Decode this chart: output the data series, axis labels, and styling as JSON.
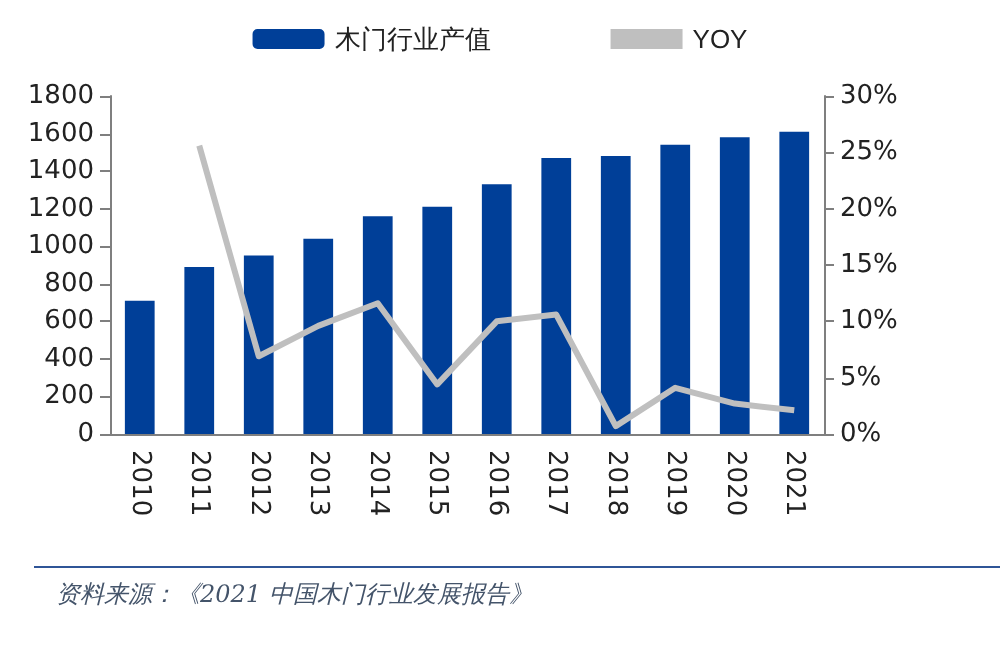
{
  "chart_data": {
    "type": "bar",
    "categories": [
      "2010",
      "2011",
      "2012",
      "2013",
      "2014",
      "2015",
      "2016",
      "2017",
      "2018",
      "2019",
      "2020",
      "2021"
    ],
    "series": [
      {
        "name": "木门行业产值",
        "color": "#003f98",
        "values": [
          710,
          890,
          950,
          1040,
          1160,
          1210,
          1330,
          1470,
          1480,
          1540,
          1580,
          1610
        ]
      },
      {
        "name": "YOY",
        "type": "line",
        "axis": "y2",
        "color": "#bfbfbf",
        "values": [
          null,
          25.6,
          6.9,
          9.6,
          11.6,
          4.4,
          10,
          10.6,
          0.7,
          4.1,
          2.7,
          2.1
        ]
      }
    ],
    "ylim": [
      0,
      1800
    ],
    "yticks": [
      0,
      200,
      400,
      600,
      800,
      1000,
      1200,
      1400,
      1600,
      1800
    ],
    "y2lim": [
      0,
      30
    ],
    "y2ticks": [
      {
        "value": 0,
        "label": "0%"
      },
      {
        "value": 5,
        "label": "5%"
      },
      {
        "value": 10,
        "label": "10%"
      },
      {
        "value": 15,
        "label": "15%"
      },
      {
        "value": 20,
        "label": "20%"
      },
      {
        "value": 25,
        "label": "25%"
      },
      {
        "value": 30,
        "label": "30%"
      }
    ],
    "legend": "top",
    "grid": false,
    "marker": "none",
    "line_style": "solid",
    "annotations": [
      "资料来源：《2021 中国木门行业发展报告》"
    ]
  }
}
